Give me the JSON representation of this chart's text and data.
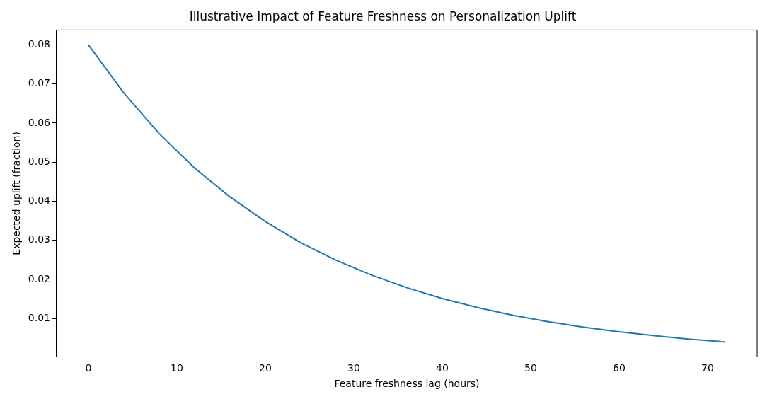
{
  "chart_data": {
    "type": "line",
    "title": "Illustrative Impact of Feature Freshness on Personalization Uplift",
    "xlabel": "Feature freshness lag (hours)",
    "ylabel": "Expected uplift (fraction)",
    "x": [
      0,
      4,
      8,
      12,
      16,
      20,
      24,
      28,
      32,
      36,
      40,
      44,
      48,
      52,
      56,
      60,
      64,
      68,
      72
    ],
    "series": [
      {
        "color": "#1f77b4",
        "values": [
          0.08,
          0.0677,
          0.0573,
          0.0485,
          0.0411,
          0.0348,
          0.0294,
          0.0249,
          0.0211,
          0.0179,
          0.0151,
          0.0128,
          0.0108,
          0.0092,
          0.0078,
          0.0066,
          0.0056,
          0.0047,
          0.004
        ]
      }
    ],
    "xlim": [
      -3.6,
      75.6
    ],
    "ylim": [
      0.0002,
      0.0838
    ],
    "xticks": [
      0,
      10,
      20,
      30,
      40,
      50,
      60,
      70
    ],
    "yticks": [
      0.01,
      0.02,
      0.03,
      0.04,
      0.05,
      0.06,
      0.07,
      0.08
    ],
    "grid": false,
    "legend": false,
    "marker": "none",
    "line_style": "solid"
  }
}
